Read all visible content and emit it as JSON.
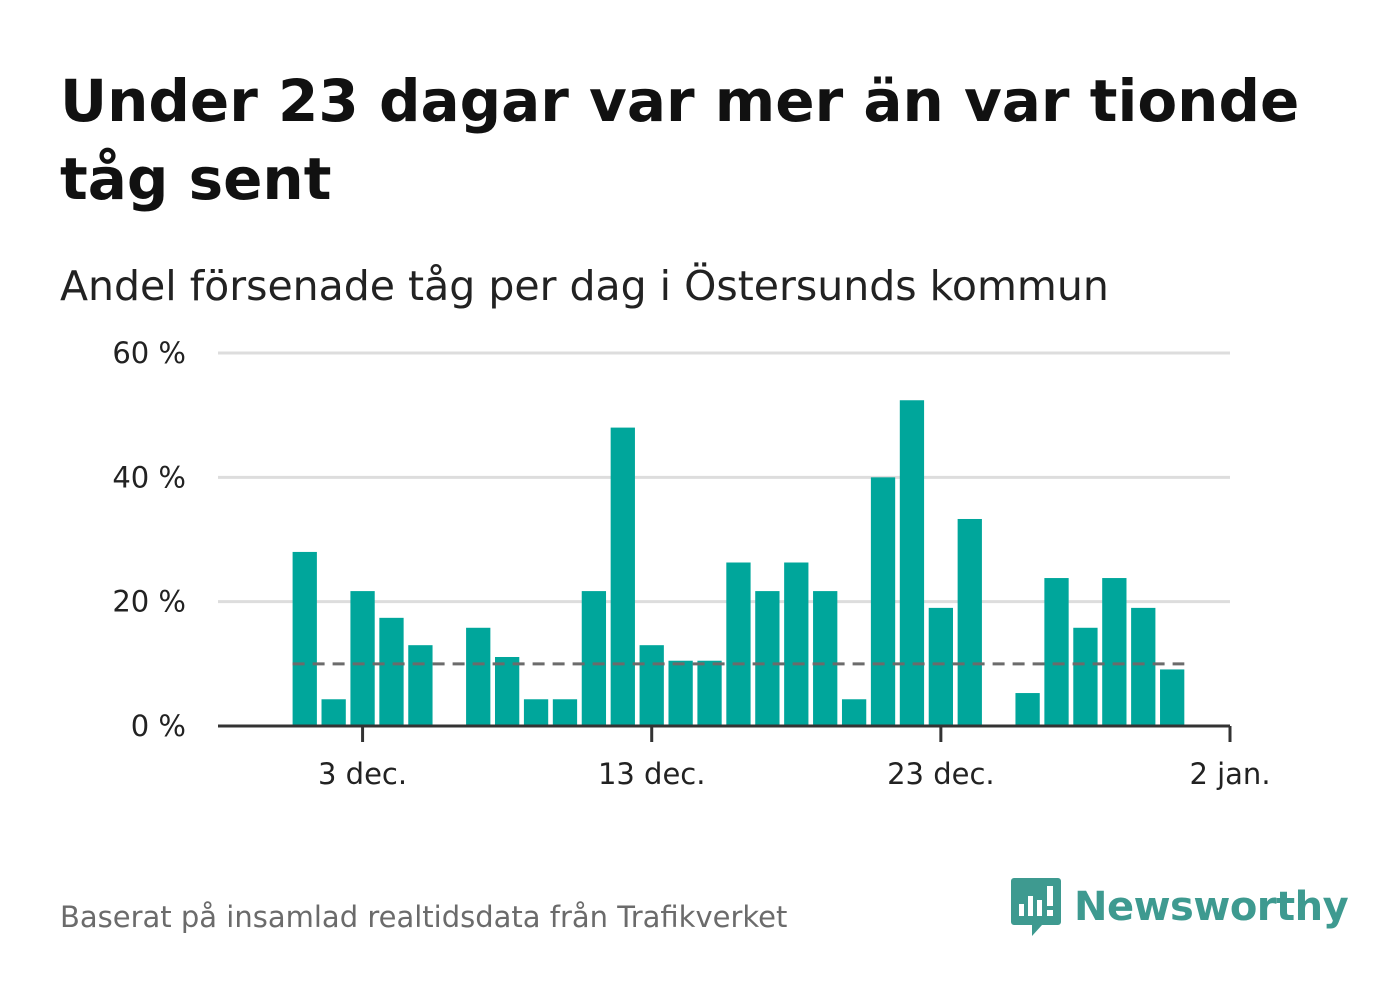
{
  "header": {
    "title": "Under 23 dagar var mer än var tionde tåg sent",
    "subtitle": "Andel försenade tåg per dag i Östersunds kommun"
  },
  "footer": {
    "source": "Baserat på insamlad realtidsdata från Trafikverket",
    "brand": "Newsworthy",
    "brand_color": "#3e9a90"
  },
  "chart_data": {
    "type": "bar",
    "title": "Under 23 dagar var mer än var tionde tåg sent",
    "subtitle": "Andel försenade tåg per dag i Östersunds kommun",
    "xlabel": "",
    "ylabel": "",
    "x_ticks": [
      {
        "date": "2023-12-03",
        "label": "3 dec."
      },
      {
        "date": "2023-12-13",
        "label": "13 dec."
      },
      {
        "date": "2023-12-23",
        "label": "23 dec."
      },
      {
        "date": "2024-01-02",
        "label": "2 jan."
      }
    ],
    "y_ticks": [
      {
        "value": 0,
        "label": "0 %"
      },
      {
        "value": 20,
        "label": "20 %"
      },
      {
        "value": 40,
        "label": "40 %"
      },
      {
        "value": 60,
        "label": "60 %"
      }
    ],
    "ylim": [
      0,
      60
    ],
    "xlim": [
      "2023-11-28",
      "2024-01-02"
    ],
    "grid": true,
    "bar_color": "#00a69b",
    "reference_line": {
      "value": 10,
      "style": "dashed",
      "color": "#6b6b6b"
    },
    "series": [
      {
        "x": [
          "2023-12-01",
          "2023-12-02",
          "2023-12-03",
          "2023-12-04",
          "2023-12-05",
          "2023-12-06",
          "2023-12-07",
          "2023-12-08",
          "2023-12-09",
          "2023-12-10",
          "2023-12-11",
          "2023-12-12",
          "2023-12-13",
          "2023-12-14",
          "2023-12-15",
          "2023-12-16",
          "2023-12-17",
          "2023-12-18",
          "2023-12-19",
          "2023-12-20",
          "2023-12-21",
          "2023-12-22",
          "2023-12-23",
          "2023-12-24",
          "2023-12-25",
          "2023-12-26",
          "2023-12-27",
          "2023-12-28",
          "2023-12-29",
          "2023-12-30",
          "2023-12-31",
          "2024-01-01"
        ],
        "values": [
          28,
          4.3,
          21.7,
          17.4,
          13,
          0,
          15.8,
          11.1,
          4.3,
          4.3,
          21.7,
          48,
          13,
          10.5,
          10.5,
          26.3,
          21.7,
          26.3,
          21.7,
          4.3,
          40,
          52.4,
          19,
          33.3,
          0,
          5.3,
          23.8,
          15.8,
          23.8,
          19,
          9.1,
          0
        ]
      }
    ]
  }
}
